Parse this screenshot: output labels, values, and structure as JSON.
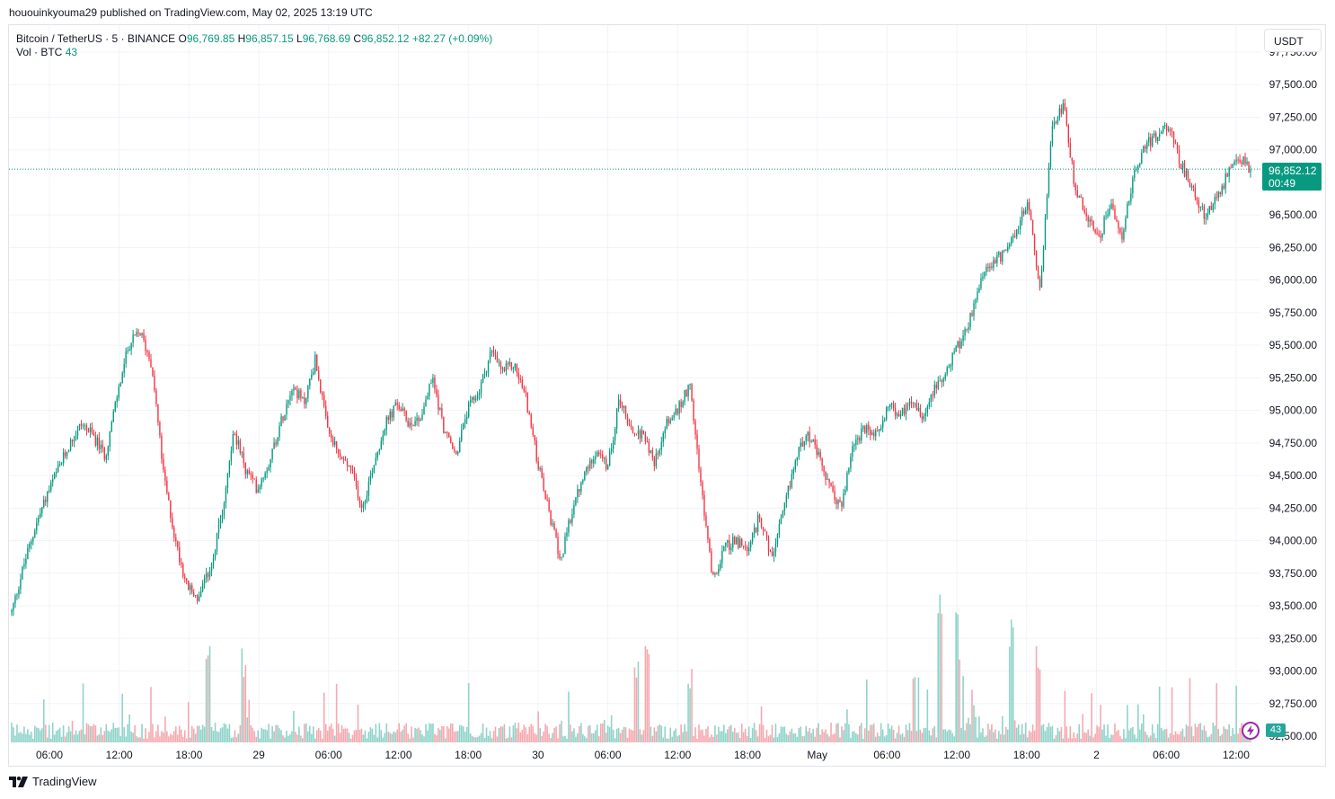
{
  "published_line": "hououinkyouma29 published on TradingView.com, May 02, 2025 13:19 UTC",
  "legend": {
    "symbol": "Bitcoin / TetherUS · 5 · BINANCE",
    "o_label": "O",
    "o_value": "96,769.85",
    "h_label": "H",
    "h_value": "96,857.15",
    "l_label": "L",
    "l_value": "96,768.69",
    "c_label": "C",
    "c_value": "96,852.12",
    "change": "+82.27 (+0.09%)",
    "vol_label": "Vol · BTC",
    "vol_value": "43"
  },
  "currency_button": "USDT",
  "price_tag": {
    "price": "96,852.12",
    "countdown": "00:49"
  },
  "volume_tag": "43",
  "footer_brand": "TradingView",
  "colors": {
    "up": "#089981",
    "down": "#f23645",
    "up_vol": "#8fd3c9",
    "down_vol": "#f4a9af",
    "grid": "#f0f3fa"
  },
  "chart_data": {
    "type": "candlestick",
    "y_ticks": [
      "97,750.00",
      "97,500.00",
      "97,250.00",
      "97,000.00",
      "96,500.00",
      "96,250.00",
      "96,000.00",
      "95,750.00",
      "95,500.00",
      "95,250.00",
      "95,000.00",
      "94,750.00",
      "94,500.00",
      "94,250.00",
      "94,000.00",
      "93,750.00",
      "93,500.00",
      "93,250.00",
      "93,000.00",
      "92,750.00",
      "92,500.00"
    ],
    "ylim": [
      92500,
      97750
    ],
    "x_ticks": [
      "06:00",
      "12:00",
      "18:00",
      "29",
      "06:00",
      "12:00",
      "18:00",
      "30",
      "06:00",
      "12:00",
      "18:00",
      "May",
      "06:00",
      "12:00",
      "18:00",
      "2",
      "06:00",
      "12:00"
    ],
    "last_price": 96852.12,
    "price_path": [
      [
        0,
        93450
      ],
      [
        3,
        93800
      ],
      [
        6,
        94100
      ],
      [
        9,
        94350
      ],
      [
        12,
        94550
      ],
      [
        15,
        94750
      ],
      [
        18,
        94900
      ],
      [
        21,
        94800
      ],
      [
        24,
        94650
      ],
      [
        27,
        95100
      ],
      [
        30,
        95500
      ],
      [
        33,
        95600
      ],
      [
        36,
        95350
      ],
      [
        39,
        94500
      ],
      [
        42,
        94000
      ],
      [
        45,
        93650
      ],
      [
        48,
        93550
      ],
      [
        51,
        93800
      ],
      [
        54,
        94200
      ],
      [
        57,
        94850
      ],
      [
        60,
        94550
      ],
      [
        63,
        94400
      ],
      [
        66,
        94600
      ],
      [
        69,
        94900
      ],
      [
        72,
        95200
      ],
      [
        75,
        95050
      ],
      [
        78,
        95400
      ],
      [
        81,
        94850
      ],
      [
        84,
        94650
      ],
      [
        87,
        94550
      ],
      [
        90,
        94250
      ],
      [
        93,
        94600
      ],
      [
        96,
        94900
      ],
      [
        99,
        95050
      ],
      [
        102,
        94900
      ],
      [
        105,
        94950
      ],
      [
        108,
        95250
      ],
      [
        111,
        94850
      ],
      [
        114,
        94650
      ],
      [
        117,
        95000
      ],
      [
        120,
        95150
      ],
      [
        123,
        95450
      ],
      [
        126,
        95300
      ],
      [
        129,
        95350
      ],
      [
        132,
        95100
      ],
      [
        135,
        94600
      ],
      [
        138,
        94200
      ],
      [
        141,
        93850
      ],
      [
        144,
        94250
      ],
      [
        147,
        94500
      ],
      [
        150,
        94700
      ],
      [
        153,
        94550
      ],
      [
        156,
        95100
      ],
      [
        159,
        94850
      ],
      [
        162,
        94800
      ],
      [
        165,
        94600
      ],
      [
        168,
        94900
      ],
      [
        171,
        95000
      ],
      [
        174,
        95200
      ],
      [
        177,
        94400
      ],
      [
        180,
        93700
      ],
      [
        183,
        93950
      ],
      [
        186,
        94000
      ],
      [
        189,
        93900
      ],
      [
        192,
        94200
      ],
      [
        195,
        93850
      ],
      [
        198,
        94200
      ],
      [
        201,
        94600
      ],
      [
        204,
        94850
      ],
      [
        207,
        94650
      ],
      [
        210,
        94400
      ],
      [
        213,
        94250
      ],
      [
        216,
        94750
      ],
      [
        219,
        94850
      ],
      [
        222,
        94800
      ],
      [
        225,
        95050
      ],
      [
        228,
        94950
      ],
      [
        231,
        95100
      ],
      [
        234,
        94950
      ],
      [
        237,
        95200
      ],
      [
        240,
        95300
      ],
      [
        243,
        95500
      ],
      [
        246,
        95700
      ],
      [
        249,
        96000
      ],
      [
        252,
        96150
      ],
      [
        255,
        96200
      ],
      [
        258,
        96400
      ],
      [
        261,
        96600
      ],
      [
        264,
        95900
      ],
      [
        267,
        97150
      ],
      [
        270,
        97350
      ],
      [
        273,
        96700
      ],
      [
        276,
        96500
      ],
      [
        279,
        96300
      ],
      [
        282,
        96600
      ],
      [
        285,
        96350
      ],
      [
        288,
        96800
      ],
      [
        291,
        97050
      ],
      [
        294,
        97100
      ],
      [
        297,
        97200
      ],
      [
        300,
        96900
      ],
      [
        303,
        96700
      ],
      [
        306,
        96500
      ],
      [
        309,
        96600
      ],
      [
        312,
        96800
      ],
      [
        315,
        96950
      ],
      [
        318,
        96850
      ]
    ]
  }
}
